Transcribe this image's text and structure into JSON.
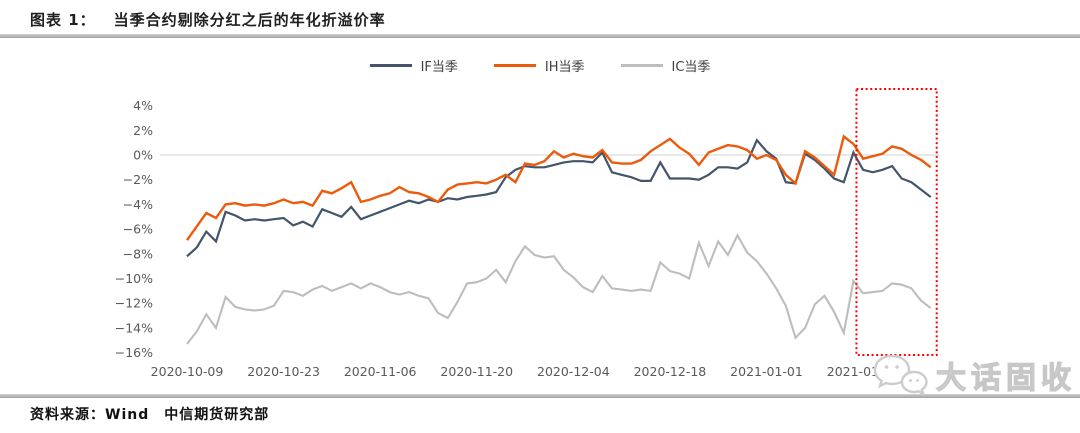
{
  "header": {
    "label": "图表 1：",
    "title": "当季合约剔除分红之后的年化折溢价率"
  },
  "footer": {
    "source": "资料来源：Wind　中信期货研究部"
  },
  "watermark": {
    "text": "大话固收",
    "icon": "chat-bubbles-logo"
  },
  "colors": {
    "if_line": "#44546A",
    "ih_line": "#EB5B0C",
    "ic_line": "#BDBDBD",
    "gridline": "#D9D9D9",
    "highlight_box": "#FF0000",
    "divider": "#ABABAB",
    "tick_text": "#595959"
  },
  "chart_data": {
    "type": "line",
    "title": "当季合约剔除分红之后的年化折溢价率",
    "unit": "percent",
    "ylim": [
      -16,
      4
    ],
    "grid": "horizontal line at 0% only",
    "legend_position": "top-center",
    "y_ticks": [
      "4%",
      "2%",
      "0%",
      "−2%",
      "−4%",
      "−6%",
      "−8%",
      "−10%",
      "−12%",
      "−14%",
      "−16%"
    ],
    "x_ticks": [
      "2020-10-09",
      "2020-10-23",
      "2020-11-06",
      "2020-11-20",
      "2020-12-04",
      "2020-12-18",
      "2021-01-01",
      "2021-01-15"
    ],
    "x": [
      "2020-10-09",
      "2020-10-12",
      "2020-10-13",
      "2020-10-14",
      "2020-10-15",
      "2020-10-16",
      "2020-10-19",
      "2020-10-20",
      "2020-10-21",
      "2020-10-22",
      "2020-10-23",
      "2020-10-26",
      "2020-10-27",
      "2020-10-28",
      "2020-10-29",
      "2020-10-30",
      "2020-11-02",
      "2020-11-03",
      "2020-11-04",
      "2020-11-05",
      "2020-11-06",
      "2020-11-09",
      "2020-11-10",
      "2020-11-11",
      "2020-11-12",
      "2020-11-13",
      "2020-11-16",
      "2020-11-17",
      "2020-11-18",
      "2020-11-19",
      "2020-11-20",
      "2020-11-23",
      "2020-11-24",
      "2020-11-25",
      "2020-11-26",
      "2020-11-27",
      "2020-11-30",
      "2020-12-01",
      "2020-12-02",
      "2020-12-03",
      "2020-12-04",
      "2020-12-07",
      "2020-12-08",
      "2020-12-09",
      "2020-12-10",
      "2020-12-11",
      "2020-12-14",
      "2020-12-15",
      "2020-12-16",
      "2020-12-17",
      "2020-12-18",
      "2020-12-21",
      "2020-12-22",
      "2020-12-23",
      "2020-12-24",
      "2020-12-25",
      "2020-12-28",
      "2020-12-29",
      "2020-12-30",
      "2020-12-31",
      "2021-01-01",
      "2021-01-04",
      "2021-01-05",
      "2021-01-06",
      "2021-01-07",
      "2021-01-08",
      "2021-01-11",
      "2021-01-12",
      "2021-01-13",
      "2021-01-14",
      "2021-01-15",
      "2021-01-18",
      "2021-01-19",
      "2021-01-20",
      "2021-01-21",
      "2021-01-22",
      "2021-01-25",
      "2021-01-26"
    ],
    "series": [
      {
        "key": "if-quarterly",
        "name": "IF当季",
        "color": "#44546A",
        "values": [
          -8.2,
          -7.5,
          -6.2,
          -7.0,
          -4.6,
          -4.9,
          -5.3,
          -5.2,
          -5.3,
          -5.2,
          -5.1,
          -5.7,
          -5.4,
          -5.8,
          -4.4,
          -4.7,
          -5.0,
          -4.2,
          -5.2,
          -4.9,
          -4.6,
          -4.3,
          -4.0,
          -3.7,
          -3.9,
          -3.6,
          -3.8,
          -3.5,
          -3.6,
          -3.4,
          -3.3,
          -3.2,
          -3.0,
          -1.8,
          -1.2,
          -0.9,
          -1.0,
          -1.0,
          -0.8,
          -0.6,
          -0.5,
          -0.5,
          -0.6,
          0.2,
          -1.4,
          -1.6,
          -1.8,
          -2.1,
          -2.1,
          -0.6,
          -1.9,
          -1.9,
          -1.9,
          -2.0,
          -1.6,
          -1.0,
          -1.0,
          -1.1,
          -0.6,
          1.2,
          0.3,
          -0.3,
          -2.2,
          -2.3,
          0.1,
          -0.4,
          -1.1,
          -1.9,
          -2.2,
          0.2,
          -1.2,
          -1.4,
          -1.2,
          -0.9,
          -1.9,
          -2.2,
          -2.8,
          -3.4
        ]
      },
      {
        "key": "ih-quarterly",
        "name": "IH当季",
        "color": "#EB5B0C",
        "values": [
          -6.9,
          -5.8,
          -4.7,
          -5.1,
          -4.0,
          -3.9,
          -4.1,
          -4.0,
          -4.1,
          -3.9,
          -3.6,
          -3.9,
          -3.8,
          -4.1,
          -2.9,
          -3.1,
          -2.7,
          -2.2,
          -3.8,
          -3.6,
          -3.3,
          -3.1,
          -2.6,
          -3.0,
          -3.1,
          -3.4,
          -3.8,
          -2.8,
          -2.4,
          -2.3,
          -2.2,
          -2.3,
          -2.0,
          -1.6,
          -2.2,
          -0.7,
          -0.8,
          -0.5,
          0.3,
          -0.2,
          0.1,
          -0.1,
          -0.2,
          0.4,
          -0.6,
          -0.7,
          -0.7,
          -0.4,
          0.3,
          0.8,
          1.3,
          0.6,
          0.1,
          -0.8,
          0.2,
          0.5,
          0.8,
          0.7,
          0.4,
          -0.3,
          0.0,
          -0.4,
          -1.6,
          -2.3,
          0.3,
          -0.2,
          -0.9,
          -1.6,
          1.5,
          0.9,
          -0.3,
          -0.1,
          0.1,
          0.7,
          0.5,
          0.0,
          -0.4,
          -1.0
        ]
      },
      {
        "key": "ic-quarterly",
        "name": "IC当季",
        "color": "#BDBDBD",
        "values": [
          -15.3,
          -14.3,
          -12.9,
          -14.0,
          -11.5,
          -12.3,
          -12.5,
          -12.6,
          -12.5,
          -12.2,
          -11.0,
          -11.1,
          -11.4,
          -10.9,
          -10.6,
          -11.0,
          -10.7,
          -10.4,
          -10.8,
          -10.4,
          -10.7,
          -11.1,
          -11.3,
          -11.1,
          -11.4,
          -11.6,
          -12.8,
          -13.2,
          -11.9,
          -10.4,
          -10.3,
          -10.0,
          -9.3,
          -10.3,
          -8.6,
          -7.4,
          -8.1,
          -8.3,
          -8.2,
          -9.3,
          -9.9,
          -10.7,
          -11.1,
          -9.8,
          -10.8,
          -10.9,
          -11.0,
          -10.9,
          -11.0,
          -8.7,
          -9.4,
          -9.6,
          -10.0,
          -7.1,
          -9.0,
          -7.0,
          -8.1,
          -6.5,
          -7.9,
          -8.6,
          -9.6,
          -10.8,
          -12.2,
          -14.8,
          -14.0,
          -12.1,
          -11.4,
          -12.7,
          -14.4,
          -10.2,
          -11.2,
          -11.1,
          -11.0,
          -10.4,
          -10.5,
          -10.8,
          -11.8,
          -12.4
        ]
      }
    ],
    "highlight_box": {
      "from": "2021-01-14",
      "to": "2021-01-26",
      "style": "red dotted rectangle",
      "color": "#FF0000"
    }
  }
}
